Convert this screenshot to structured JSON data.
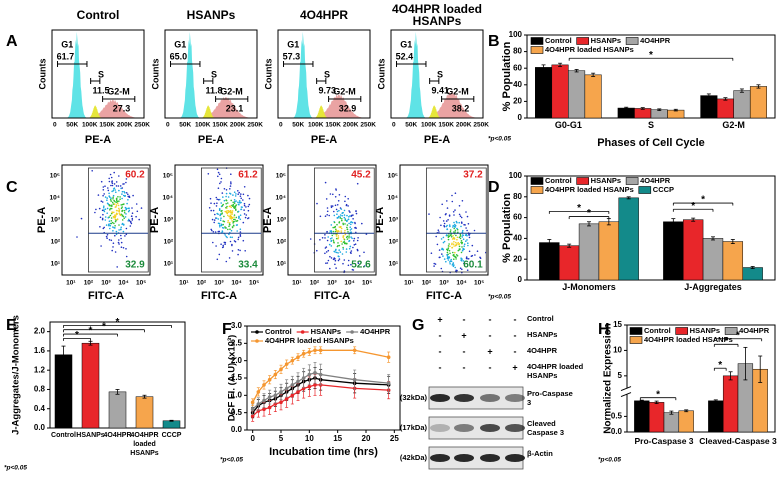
{
  "panel_labels": [
    "A",
    "B",
    "C",
    "D",
    "E",
    "F",
    "G",
    "H"
  ],
  "cell_cycle_histograms": {
    "y_label": "Counts",
    "x_label": "PE-A",
    "x_ticks": [
      "0",
      "50K",
      "100K",
      "150K",
      "200K",
      "250K"
    ],
    "panels": [
      {
        "title": "Control",
        "gates": [
          {
            "name": "G1",
            "value": "61.7"
          },
          {
            "name": "S",
            "value": "11.5"
          },
          {
            "name": "G2-M",
            "value": "27.3"
          }
        ]
      },
      {
        "title": "HSANPs",
        "gates": [
          {
            "name": "G1",
            "value": "65.0"
          },
          {
            "name": "S",
            "value": "11.8"
          },
          {
            "name": "G2-M",
            "value": "23.1"
          }
        ]
      },
      {
        "title": "4O4HPR",
        "gates": [
          {
            "name": "G1",
            "value": "57.3"
          },
          {
            "name": "S",
            "value": "9.73"
          },
          {
            "name": "G2-M",
            "value": "32.9"
          }
        ]
      },
      {
        "title": "4O4HPR loaded HSANPs",
        "gates": [
          {
            "name": "G1",
            "value": "52.4"
          },
          {
            "name": "S",
            "value": "9.41"
          },
          {
            "name": "G2-M",
            "value": "38.2"
          }
        ]
      }
    ]
  },
  "jc1_dot_plots": {
    "y_label": "PE-A",
    "x_label": "FITC-A",
    "x_ticks": [
      "10¹",
      "10²",
      "10³",
      "10⁴",
      "10⁵"
    ],
    "y_ticks": [
      "10⁵",
      "10⁴",
      "10³",
      "10²",
      "10¹"
    ],
    "panels": [
      {
        "upper": "60.2",
        "lower": "32.9"
      },
      {
        "upper": "61.2",
        "lower": "33.4"
      },
      {
        "upper": "45.2",
        "lower": "52.6"
      },
      {
        "upper": "37.2",
        "lower": "60.1"
      }
    ]
  },
  "western_blot": {
    "treatments": [
      "Control",
      "HSANPs",
      "4O4HPR",
      "4O4HPR loaded HSANPs"
    ],
    "lanes": [
      [
        "+",
        "-",
        "-",
        "-"
      ],
      [
        "-",
        "+",
        "-",
        "-"
      ],
      [
        "-",
        "-",
        "+",
        "-"
      ],
      [
        "-",
        "-",
        "-",
        "+"
      ]
    ],
    "bands": [
      {
        "size": "(32kDa)",
        "label": "Pro-Caspase 3"
      },
      {
        "size": "(17kDa)",
        "label": "Cleaved Caspase 3"
      },
      {
        "size": "(42kDa)",
        "label": "β-Actin"
      }
    ]
  },
  "chart_data": [
    {
      "type": "bar",
      "x_label": "Phases of Cell Cycle",
      "y_label": "% Population",
      "note": "*p<0.05",
      "annotations": [
        "*"
      ],
      "categories": [
        "G0-G1",
        "S",
        "G2-M"
      ],
      "series": [
        {
          "name": "Control",
          "color": "#000000",
          "values": [
            61,
            12,
            27
          ],
          "errors": [
            3,
            1,
            2
          ]
        },
        {
          "name": "HSANPs",
          "color": "#e8262a",
          "values": [
            64,
            11.5,
            23
          ],
          "errors": [
            2,
            1,
            1.5
          ]
        },
        {
          "name": "4O4HPR",
          "color": "#a6a6a6",
          "values": [
            57,
            10,
            33
          ],
          "errors": [
            1.5,
            1,
            2
          ]
        },
        {
          "name": "4O4HPR loaded HSANPs",
          "color": "#f6a54c",
          "values": [
            52,
            9.5,
            38
          ],
          "errors": [
            2,
            1,
            2
          ]
        }
      ],
      "ylim": [
        0,
        100
      ],
      "yticks": [
        0,
        20,
        40,
        60,
        80,
        100
      ]
    },
    {
      "type": "bar",
      "y_label": "% Population",
      "note": "*p<0.05",
      "annotations": [
        "*",
        "*",
        "*",
        "*"
      ],
      "categories": [
        "J-Monomers",
        "J-Aggregates"
      ],
      "series": [
        {
          "name": "Control",
          "color": "#000000",
          "values": [
            36,
            56
          ],
          "errors": [
            3,
            3
          ]
        },
        {
          "name": "HSANPs",
          "color": "#e8262a",
          "values": [
            33,
            58
          ],
          "errors": [
            1.5,
            1.5
          ]
        },
        {
          "name": "4O4HPR",
          "color": "#a6a6a6",
          "values": [
            54,
            40
          ],
          "errors": [
            2,
            1.5
          ]
        },
        {
          "name": "4O4HPR loaded HSANPs",
          "color": "#f6a54c",
          "values": [
            56,
            37
          ],
          "errors": [
            3,
            2
          ]
        },
        {
          "name": "CCCP",
          "color": "#138a8a",
          "values": [
            79,
            12
          ],
          "errors": [
            1,
            1
          ]
        }
      ],
      "ylim": [
        0,
        100
      ],
      "yticks": [
        0,
        20,
        40,
        60,
        80,
        100
      ]
    },
    {
      "type": "bar",
      "y_label": "J-Aggregates/J-Monomers",
      "note": "*p<0.05",
      "annotations": [
        "*",
        "*",
        "*",
        "*"
      ],
      "categories": [
        "Control",
        "HSANPs",
        "4O4HPR",
        "4O4HPR loaded HSANPs",
        "CCCP"
      ],
      "values": [
        1.52,
        1.76,
        0.75,
        0.65,
        0.15
      ],
      "errors": [
        0.18,
        0.04,
        0.05,
        0.03,
        0.01
      ],
      "colors": [
        "#000000",
        "#e8262a",
        "#a6a6a6",
        "#f6a54c",
        "#138a8a"
      ],
      "ylim": [
        0,
        2.2
      ],
      "yticks": [
        {
          "value": 0,
          "label": "0.0"
        },
        0.4,
        0.8,
        1.2,
        1.6,
        {
          "value": 2,
          "label": "2.0"
        }
      ]
    },
    {
      "type": "line",
      "x_label": "Incubation time (hrs)",
      "y_label": "DCF Fl. (A.U) (x10³)",
      "note": "*p<0.05",
      "x": [
        0,
        1,
        2,
        3,
        4,
        5,
        6,
        7,
        8,
        9,
        10,
        11,
        12,
        18,
        24
      ],
      "series": [
        {
          "name": "Control",
          "color": "#000000",
          "values": [
            0.5,
            0.7,
            0.8,
            0.85,
            0.9,
            1.0,
            1.1,
            1.2,
            1.3,
            1.4,
            1.45,
            1.5,
            1.45,
            1.35,
            1.3
          ],
          "errors": [
            0.15,
            0.18,
            0.2,
            0.2,
            0.22,
            0.22,
            0.25,
            0.25,
            0.25,
            0.28,
            0.28,
            0.3,
            0.3,
            0.28,
            0.25
          ]
        },
        {
          "name": "HSANPs",
          "color": "#e8262a",
          "values": [
            0.4,
            0.55,
            0.6,
            0.65,
            0.75,
            0.8,
            0.9,
            1.0,
            1.1,
            1.2,
            1.25,
            1.3,
            1.3,
            1.2,
            1.15
          ],
          "errors": [
            0.15,
            0.18,
            0.2,
            0.2,
            0.22,
            0.22,
            0.25,
            0.25,
            0.25,
            0.28,
            0.28,
            0.3,
            0.3,
            0.28,
            0.25
          ]
        },
        {
          "name": "4O4HPR",
          "color": "#808080",
          "values": [
            0.6,
            0.75,
            0.85,
            0.95,
            1.0,
            1.1,
            1.2,
            1.3,
            1.4,
            1.5,
            1.6,
            1.65,
            1.6,
            1.45,
            1.35
          ],
          "errors": [
            0.15,
            0.18,
            0.2,
            0.2,
            0.22,
            0.22,
            0.25,
            0.25,
            0.25,
            0.28,
            0.28,
            0.3,
            0.3,
            0.28,
            0.25
          ]
        },
        {
          "name": "4O4HPR loaded HSANPs",
          "color": "#f5962f",
          "values": [
            0.8,
            1.1,
            1.3,
            1.45,
            1.6,
            1.75,
            1.9,
            2.0,
            2.1,
            2.2,
            2.25,
            2.3,
            2.3,
            2.3,
            2.1
          ],
          "errors": [
            0.1,
            0.12,
            0.12,
            0.12,
            0.12,
            0.12,
            0.12,
            0.1,
            0.1,
            0.1,
            0.1,
            0.1,
            0.1,
            0.1,
            0.15
          ]
        }
      ],
      "xlim": [
        -1,
        26
      ],
      "xticks": [
        0,
        5,
        10,
        15,
        20,
        25
      ],
      "ylim": [
        0,
        3
      ],
      "yticks": [
        {
          "value": 0,
          "label": "0.0"
        },
        0.5,
        {
          "value": 1,
          "label": "1.0"
        },
        1.5,
        {
          "value": 2,
          "label": "2.0"
        },
        2.5,
        {
          "value": 3,
          "label": "3.0"
        }
      ]
    },
    {
      "type": "bar",
      "y_label": "Normalized Expression",
      "note": "*p<0.05",
      "annotations": [
        "*",
        "*",
        "*",
        "*"
      ],
      "categories": [
        "Pro-Caspase 3",
        "Cleaved-Caspase 3"
      ],
      "series": [
        {
          "name": "Control",
          "color": "#000000",
          "values": [
            1.0,
            1.0
          ],
          "errors": [
            0.02,
            0.03
          ]
        },
        {
          "name": "HSANPs",
          "color": "#e8262a",
          "values": [
            0.95,
            5.0
          ],
          "errors": [
            0.04,
            0.8
          ]
        },
        {
          "name": "4O4HPR",
          "color": "#a6a6a6",
          "values": [
            0.62,
            7.4
          ],
          "errors": [
            0.05,
            3.2
          ]
        },
        {
          "name": "4O4HPR loaded HSANPs",
          "color": "#f6a54c",
          "values": [
            0.68,
            6.3
          ],
          "errors": [
            0.03,
            2.6
          ]
        }
      ],
      "ylim": [
        0,
        15
      ],
      "ybreak": [
        1.2,
        2.5
      ],
      "yticks": [
        {
          "value": 0,
          "label": "0.0"
        },
        0.5,
        5,
        10,
        15
      ]
    }
  ]
}
